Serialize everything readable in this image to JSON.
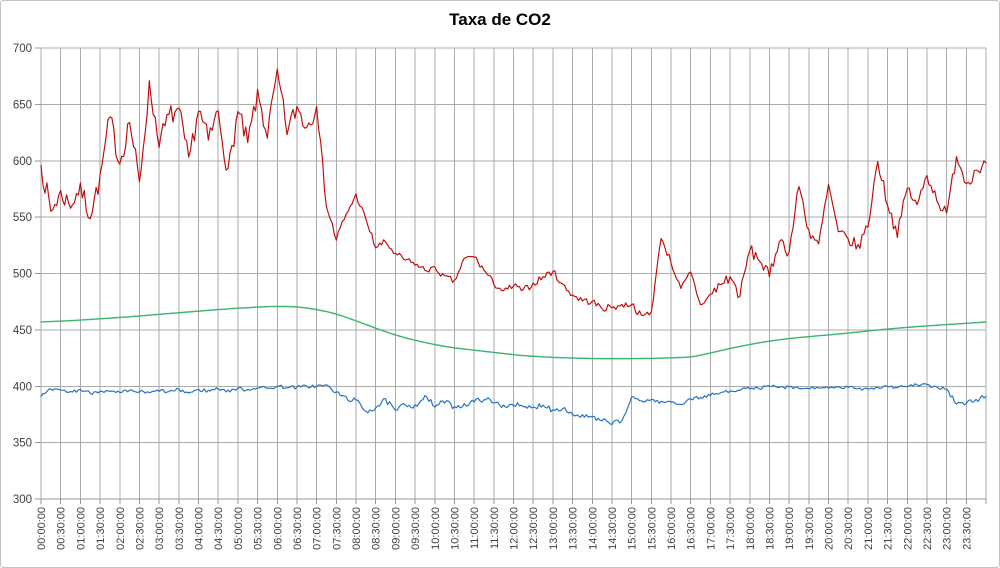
{
  "chart_data": {
    "type": "line",
    "title": "Taxa de CO2",
    "xlabel": "",
    "ylabel": "",
    "grid": true,
    "legend": "none",
    "ylim": [
      300,
      700
    ],
    "y_ticks": [
      700,
      650,
      600,
      550,
      500,
      450,
      400,
      350,
      300
    ],
    "x_axis": {
      "interval_minutes": 30,
      "labels": [
        "00:00:00",
        "00:30:00",
        "01:00:00",
        "01:30:00",
        "02:00:00",
        "02:30:00",
        "03:00:00",
        "03:30:00",
        "04:00:00",
        "04:30:00",
        "05:00:00",
        "05:30:00",
        "06:00:00",
        "06:30:00",
        "07:00:00",
        "07:30:00",
        "08:00:00",
        "08:30:00",
        "09:00:00",
        "09:30:00",
        "10:00:00",
        "10:30:00",
        "11:00:00",
        "11:30:00",
        "12:00:00",
        "12:30:00",
        "13:00:00",
        "13:30:00",
        "14:00:00",
        "14:30:00",
        "15:00:00",
        "15:30:00",
        "16:00:00",
        "16:30:00",
        "17:00:00",
        "17:30:00",
        "18:00:00",
        "18:30:00",
        "19:00:00",
        "19:30:00",
        "20:00:00",
        "20:30:00",
        "21:00:00",
        "21:30:00",
        "22:00:00",
        "22:30:00",
        "23:00:00",
        "23:30:00"
      ]
    },
    "x_start_min": 0,
    "x_end_min": 1440,
    "sample_step_min": 15,
    "series": [
      {
        "name": "co2-upper-red",
        "color": "#C00808",
        "values": [
          596,
          555,
          572,
          560,
          577,
          551,
          585,
          638,
          598,
          635,
          580,
          668,
          615,
          640,
          644,
          600,
          645,
          618,
          644,
          590,
          643,
          615,
          660,
          622,
          678,
          625,
          648,
          630,
          650,
          560,
          530,
          552,
          570,
          548,
          523,
          528,
          517,
          512,
          508,
          503,
          505,
          497,
          493,
          513,
          515,
          503,
          491,
          484,
          489,
          485,
          491,
          497,
          502,
          490,
          481,
          476,
          475,
          469,
          470,
          472,
          473,
          462,
          466,
          532,
          510,
          486,
          501,
          472,
          481,
          490,
          497,
          480,
          521,
          512,
          497,
          530,
          519,
          578,
          538,
          525,
          578,
          536,
          530,
          524,
          542,
          600,
          562,
          534,
          576,
          560,
          588,
          566,
          552,
          605,
          580,
          592,
          598
        ]
      },
      {
        "name": "co2-middle-green",
        "color": "#3CB371",
        "values": [
          457.0,
          457.4,
          457.8,
          458.2,
          458.7,
          459.2,
          459.8,
          460.4,
          461.0,
          461.6,
          462.3,
          463.0,
          463.8,
          464.5,
          465.2,
          465.9,
          466.6,
          467.3,
          468.0,
          468.6,
          469.2,
          469.7,
          470.2,
          470.6,
          470.8,
          470.7,
          470.3,
          469.4,
          468.0,
          466.2,
          464.0,
          461.2,
          458.0,
          454.8,
          451.5,
          448.4,
          445.5,
          443.0,
          440.8,
          438.8,
          437.0,
          435.4,
          434.0,
          433.0,
          432.0,
          431.0,
          430.0,
          429.0,
          428.0,
          427.2,
          426.6,
          426.1,
          425.6,
          425.3,
          425.0,
          424.8,
          424.6,
          424.5,
          424.5,
          424.5,
          424.5,
          424.6,
          424.7,
          424.9,
          425.2,
          425.5,
          426.0,
          427.5,
          429.5,
          431.5,
          433.5,
          435.3,
          437.0,
          438.6,
          440.0,
          441.2,
          442.3,
          443.2,
          444.0,
          444.8,
          445.5,
          446.3,
          447.2,
          448.1,
          449.0,
          449.9,
          450.7,
          451.5,
          452.2,
          452.9,
          453.5,
          454.1,
          454.7,
          455.3,
          455.8,
          456.4,
          457.0
        ]
      },
      {
        "name": "co2-lower-blue",
        "color": "#1F6FC0",
        "values": [
          391,
          397,
          396,
          395,
          397,
          394,
          396,
          395,
          394,
          396,
          395,
          394,
          396,
          395,
          397,
          394,
          397,
          396,
          398,
          396,
          398,
          397,
          399,
          398,
          400,
          399,
          399,
          400,
          400,
          401,
          394,
          390,
          387,
          378,
          381,
          388,
          378,
          384,
          383,
          391,
          382,
          386,
          382,
          384,
          386,
          389,
          385,
          383,
          384,
          381,
          381,
          384,
          379,
          381,
          375,
          374,
          372,
          369,
          367,
          369,
          390,
          387,
          388,
          386,
          386,
          384,
          389,
          390,
          392,
          394,
          396,
          397,
          398,
          398,
          400,
          399,
          399,
          398,
          398,
          399,
          398,
          399,
          399,
          398,
          398,
          399,
          400,
          399,
          400,
          401,
          401,
          399,
          398,
          384,
          385,
          388,
          391
        ]
      }
    ]
  },
  "style": {
    "background": "#FFFFFF",
    "border_color": "#C3C3C3",
    "gridline_color": "#ABABAB",
    "axis_color": "#9A9A9A",
    "label_color": "#3F3F3F",
    "title_color": "#000000",
    "noise_seed": 7,
    "render_noise": [
      {
        "series": "co2-upper-red",
        "segments": [
          {
            "until_min": 420,
            "amp": 10
          },
          {
            "until_min": 455,
            "amp": 5
          },
          {
            "until_min": 1020,
            "amp": 3.2
          },
          {
            "until_min": 1441,
            "amp": 6
          }
        ]
      },
      {
        "series": "co2-lower-blue",
        "segments": [
          {
            "until_min": 450,
            "amp": 1.8
          },
          {
            "until_min": 900,
            "amp": 2.8
          },
          {
            "until_min": 1380,
            "amp": 1.6
          },
          {
            "until_min": 1441,
            "amp": 2.5
          }
        ]
      },
      {
        "series": "co2-middle-green",
        "segments": [
          {
            "until_min": 1441,
            "amp": 0
          }
        ]
      }
    ]
  }
}
